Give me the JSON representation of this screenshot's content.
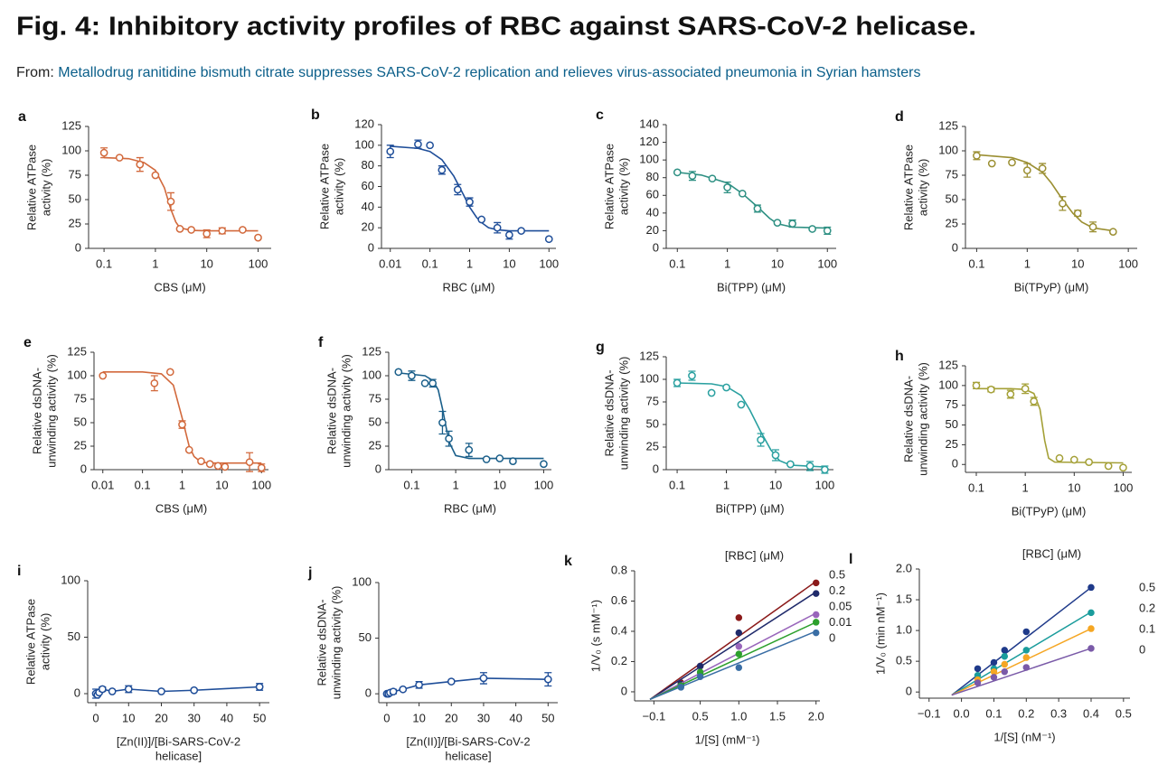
{
  "header": {
    "title": "Fig. 4: Inhibitory activity profiles of RBC against SARS-CoV-2 helicase.",
    "from": "From:",
    "link": "Metallodrug ranitidine bismuth citrate suppresses SARS-CoV-2 replication and relieves virus-associated pneumonia in Syrian hamsters"
  },
  "chart_data": [
    {
      "panel": "a",
      "type": "scatter",
      "log_x": true,
      "color": "#d2693c",
      "xlabel": "CBS (μM)",
      "ylabel": [
        "Relative ATPase",
        "activity (%)"
      ],
      "xlim": [
        0.05,
        180
      ],
      "xticks": [
        0.1,
        1,
        10,
        100
      ],
      "ylim": [
        0,
        125
      ],
      "yticks": [
        0,
        25,
        50,
        75,
        100,
        125
      ],
      "x": [
        0.1,
        0.2,
        0.5,
        1,
        2,
        3,
        5,
        10,
        20,
        50,
        100
      ],
      "values": [
        98,
        93,
        86,
        75,
        48,
        20,
        19,
        15,
        18,
        19,
        11
      ],
      "errors": [
        5,
        null,
        7,
        null,
        9,
        null,
        null,
        4,
        3,
        null,
        null
      ],
      "curve": {
        "x": [
          0.1,
          0.3,
          0.6,
          1,
          1.5,
          2,
          2.5,
          3,
          5,
          10,
          100
        ],
        "values": [
          93,
          92,
          88,
          80,
          62,
          40,
          27,
          21,
          18.5,
          18,
          18
        ]
      }
    },
    {
      "panel": "b",
      "type": "scatter",
      "log_x": true,
      "color": "#1f4e99",
      "xlabel": "RBC (μM)",
      "ylabel": [
        "Relative ATPase",
        "activity (%)"
      ],
      "xlim": [
        0.006,
        150
      ],
      "xticks": [
        0.01,
        0.1,
        1,
        10,
        100
      ],
      "ylim": [
        0,
        120
      ],
      "yticks": [
        0,
        20,
        40,
        60,
        80,
        100,
        120
      ],
      "x": [
        0.01,
        0.05,
        0.1,
        0.2,
        0.5,
        1,
        2,
        5,
        10,
        20,
        100
      ],
      "values": [
        94,
        101,
        100,
        76,
        57,
        45,
        28,
        20,
        13,
        17,
        9
      ],
      "errors": [
        6,
        4,
        null,
        4,
        5,
        4,
        null,
        5,
        4,
        null,
        null
      ],
      "curve": {
        "x": [
          0.01,
          0.05,
          0.1,
          0.2,
          0.4,
          0.7,
          1,
          1.5,
          2,
          3,
          5,
          10,
          100
        ],
        "values": [
          99,
          97,
          94,
          86,
          70,
          52,
          40,
          30,
          25,
          20,
          18,
          17,
          17
        ]
      }
    },
    {
      "panel": "c",
      "type": "scatter",
      "log_x": true,
      "color": "#2e9083",
      "xlabel": "Bi(TPP) (μM)",
      "ylabel": [
        "Relative ATPase",
        "activity (%)"
      ],
      "xlim": [
        0.06,
        150
      ],
      "xticks": [
        0.1,
        1,
        10,
        100
      ],
      "ylim": [
        0,
        140
      ],
      "yticks": [
        0,
        20,
        40,
        60,
        80,
        100,
        120,
        140
      ],
      "x": [
        0.1,
        0.2,
        0.5,
        1,
        2,
        4,
        10,
        20,
        50,
        100
      ],
      "values": [
        86,
        82,
        79,
        69,
        62,
        45,
        29,
        28,
        22,
        20
      ],
      "errors": [
        null,
        5,
        null,
        6,
        null,
        4,
        null,
        4,
        null,
        4
      ],
      "curve": {
        "x": [
          0.1,
          0.3,
          1,
          2,
          4,
          7,
          10,
          20,
          100
        ],
        "values": [
          86,
          83,
          74,
          62,
          47,
          34,
          28,
          24,
          23
        ]
      }
    },
    {
      "panel": "d",
      "type": "scatter",
      "log_x": true,
      "color": "#9b8f32",
      "xlabel": "Bi(TPyP) (μM)",
      "ylabel": [
        "Relative ATPase",
        "activity (%)"
      ],
      "xlim": [
        0.06,
        150
      ],
      "xticks": [
        0.1,
        1,
        10,
        100
      ],
      "ylim": [
        0,
        125
      ],
      "yticks": [
        0,
        25,
        50,
        75,
        100,
        125
      ],
      "x": [
        0.1,
        0.2,
        0.5,
        1,
        2,
        5,
        10,
        20,
        50
      ],
      "values": [
        95,
        87,
        88,
        80,
        82,
        46,
        36,
        22,
        17
      ],
      "errors": [
        4,
        null,
        null,
        7,
        5,
        7,
        3,
        5,
        null
      ],
      "curve": {
        "x": [
          0.1,
          0.5,
          1,
          2,
          3,
          5,
          8,
          12,
          20,
          50
        ],
        "values": [
          96,
          93,
          88,
          78,
          67,
          50,
          36,
          27,
          21,
          18
        ]
      }
    },
    {
      "panel": "e",
      "type": "scatter",
      "log_x": true,
      "color": "#d2693c",
      "xlabel": "CBS (μM)",
      "ylabel": [
        "Relative dsDNA-",
        "unwinding activity (%)"
      ],
      "xlim": [
        0.006,
        150
      ],
      "xticks": [
        0.01,
        0.1,
        1,
        10,
        100
      ],
      "ylim": [
        0,
        125
      ],
      "yticks": [
        0,
        25,
        50,
        75,
        100,
        125
      ],
      "x": [
        0.01,
        0.2,
        0.5,
        1,
        1.5,
        3,
        5,
        8,
        12,
        50,
        100
      ],
      "values": [
        100,
        92,
        104,
        48,
        21,
        9,
        6,
        4,
        3,
        8,
        2
      ],
      "errors": [
        null,
        8,
        null,
        4,
        null,
        null,
        null,
        null,
        null,
        10,
        4
      ],
      "curve": {
        "x": [
          0.01,
          0.1,
          0.3,
          0.6,
          1,
          1.5,
          2,
          3,
          5,
          100
        ],
        "values": [
          104,
          104,
          102,
          90,
          55,
          25,
          14,
          8,
          7,
          7
        ]
      }
    },
    {
      "panel": "f",
      "type": "scatter",
      "log_x": true,
      "color": "#1a5f8a",
      "xlabel": "RBC (μM)",
      "ylabel": [
        "Relative dsDNA-",
        "unwinding activity (%)"
      ],
      "xlim": [
        0.03,
        150
      ],
      "xticks": [
        0.1,
        1,
        10,
        100
      ],
      "ylim": [
        0,
        125
      ],
      "yticks": [
        0,
        25,
        50,
        75,
        100,
        125
      ],
      "x": [
        0.05,
        0.1,
        0.2,
        0.3,
        0.5,
        0.7,
        2,
        5,
        10,
        20,
        100
      ],
      "values": [
        104,
        100,
        92,
        92,
        50,
        33,
        21,
        11,
        12,
        9,
        6
      ],
      "errors": [
        null,
        5,
        null,
        4,
        12,
        8,
        7,
        null,
        null,
        null,
        null
      ],
      "curve": {
        "x": [
          0.05,
          0.2,
          0.3,
          0.4,
          0.5,
          0.7,
          1,
          2,
          100
        ],
        "values": [
          103,
          100,
          95,
          85,
          65,
          30,
          15,
          12,
          12
        ]
      }
    },
    {
      "panel": "g",
      "type": "scatter",
      "log_x": true,
      "color": "#2aa0a0",
      "xlabel": "Bi(TPP) (μM)",
      "ylabel": [
        "Relative dsDNA-",
        "unwinding activity (%)"
      ],
      "xlim": [
        0.06,
        150
      ],
      "xticks": [
        0.1,
        1,
        10,
        100
      ],
      "ylim": [
        0,
        125
      ],
      "yticks": [
        0,
        25,
        50,
        75,
        100,
        125
      ],
      "x": [
        0.1,
        0.2,
        0.5,
        1,
        2,
        5,
        10,
        20,
        50,
        100
      ],
      "values": [
        96,
        104,
        85,
        91,
        72,
        33,
        16,
        6,
        4,
        0
      ],
      "errors": [
        4,
        5,
        null,
        null,
        null,
        7,
        6,
        null,
        5,
        4
      ],
      "curve": {
        "x": [
          0.1,
          0.5,
          1,
          2,
          3,
          5,
          8,
          12,
          20,
          100
        ],
        "values": [
          96,
          95,
          92,
          82,
          66,
          42,
          22,
          10,
          5,
          3
        ]
      }
    },
    {
      "panel": "h",
      "type": "scatter",
      "log_x": true,
      "color": "#a4a037",
      "xlabel": "Bi(TPyP) (μM)",
      "ylabel": [
        "Relative dsDNA-",
        "unwinding activity (%)"
      ],
      "xlim": [
        0.06,
        150
      ],
      "xticks": [
        0.1,
        1,
        10,
        100
      ],
      "ylim": [
        -10,
        125
      ],
      "yticks": [
        0,
        25,
        50,
        75,
        100,
        125
      ],
      "x": [
        0.1,
        0.2,
        0.5,
        1,
        1.5,
        5,
        10,
        20,
        50,
        100
      ],
      "values": [
        100,
        95,
        89,
        96,
        80,
        8,
        6,
        3,
        -2,
        -4
      ],
      "errors": [
        4,
        3,
        5,
        6,
        5,
        null,
        null,
        null,
        null,
        null
      ],
      "curve": {
        "x": [
          0.1,
          0.5,
          1,
          1.5,
          2,
          2.5,
          3,
          4,
          100
        ],
        "values": [
          96,
          96,
          95,
          90,
          70,
          30,
          8,
          3,
          2
        ]
      }
    },
    {
      "panel": "i",
      "type": "line",
      "color": "#1f4e99",
      "xlabel": [
        "[Zn(II)]/[Bi-SARS-CoV-2",
        "helicase]"
      ],
      "ylabel": [
        "Relative ATPase",
        "activity (%)"
      ],
      "xlim": [
        -2.5,
        53
      ],
      "xticks": [
        0,
        10,
        20,
        30,
        40,
        50
      ],
      "ylim": [
        -8,
        100
      ],
      "yticks": [
        0,
        50,
        100
      ],
      "x": [
        0,
        0.5,
        1,
        2,
        5,
        10,
        20,
        30,
        50
      ],
      "values": [
        0,
        -1,
        1,
        4,
        2,
        4,
        2,
        3,
        6
      ],
      "errors": [
        4,
        null,
        null,
        2,
        null,
        3,
        null,
        null,
        3
      ]
    },
    {
      "panel": "j",
      "type": "line",
      "color": "#1f4e99",
      "xlabel": [
        "[Zn(II)]/[Bi-SARS-CoV-2",
        "helicase]"
      ],
      "ylabel": [
        "Relative dsDNA-",
        "unwinding activity (%)"
      ],
      "xlim": [
        -2.5,
        53
      ],
      "xticks": [
        0,
        10,
        20,
        30,
        40,
        50
      ],
      "ylim": [
        -8,
        100
      ],
      "yticks": [
        0,
        50,
        100
      ],
      "x": [
        0,
        0.5,
        1,
        2,
        5,
        10,
        20,
        30,
        50
      ],
      "values": [
        0,
        0,
        1,
        2,
        4,
        8,
        11,
        14,
        13
      ],
      "errors": [
        null,
        null,
        null,
        2,
        null,
        3,
        null,
        5,
        6
      ]
    },
    {
      "panel": "k",
      "type": "scatter",
      "xlabel": "1/[S] (mM⁻¹)",
      "ylabel": [
        "1/V₀ (s mM⁻¹)"
      ],
      "legend_title": "[RBC] (μM)",
      "xlim": [
        -0.35,
        2.05
      ],
      "xticks": [
        {
          "value": -0.1,
          "label": "−0.1"
        },
        0.5,
        {
          "value": 1,
          "label": "1.0"
        },
        1.5,
        {
          "value": 2,
          "label": "2.0"
        }
      ],
      "ylim": [
        -0.06,
        0.8
      ],
      "yticks": [
        0,
        0.2,
        0.4,
        0.6,
        0.8
      ],
      "series": [
        {
          "name": "0.5",
          "color": "#8b1a1a",
          "x": [
            0.25,
            0.5,
            1,
            2
          ],
          "values": [
            0.06,
            0.17,
            0.49,
            0.72
          ],
          "fit": {
            "x": [
              -0.15,
              2
            ],
            "values": [
              -0.05,
              0.73
            ]
          }
        },
        {
          "name": "0.2",
          "color": "#1f2a6b",
          "x": [
            0.25,
            0.5,
            1,
            2
          ],
          "values": [
            0.05,
            0.17,
            0.39,
            0.65
          ],
          "fit": {
            "x": [
              -0.15,
              2
            ],
            "values": [
              -0.05,
              0.66
            ]
          }
        },
        {
          "name": "0.05",
          "color": "#9966bb",
          "x": [
            0.25,
            0.5,
            1,
            2
          ],
          "values": [
            0.04,
            0.12,
            0.3,
            0.51
          ],
          "fit": {
            "x": [
              -0.15,
              2
            ],
            "values": [
              -0.05,
              0.52
            ]
          }
        },
        {
          "name": "0.01",
          "color": "#2ca02c",
          "x": [
            0.25,
            0.5,
            1,
            2
          ],
          "values": [
            0.04,
            0.13,
            0.25,
            0.46
          ],
          "fit": {
            "x": [
              -0.15,
              2
            ],
            "values": [
              -0.05,
              0.46
            ]
          }
        },
        {
          "name": "0",
          "color": "#3a6ea5",
          "x": [
            0.25,
            0.5,
            1,
            2
          ],
          "values": [
            0.03,
            0.1,
            0.16,
            0.39
          ],
          "fit": {
            "x": [
              -0.15,
              2
            ],
            "values": [
              -0.05,
              0.4
            ]
          }
        }
      ]
    },
    {
      "panel": "l",
      "type": "scatter",
      "xlabel": "1/[S] (nM⁻¹)",
      "ylabel": [
        "1/V₀ (min nM⁻¹)"
      ],
      "legend_title": "[RBC] (μM)",
      "xlim": [
        -0.13,
        0.52
      ],
      "xticks": [
        {
          "value": -0.1,
          "label": "−0.1"
        },
        {
          "value": 0,
          "label": "0.0"
        },
        0.1,
        0.2,
        0.3,
        0.4,
        0.5
      ],
      "ylim": [
        -0.1,
        2.0
      ],
      "yticks": [
        0,
        0.5,
        {
          "value": 1,
          "label": "1.0"
        },
        1.5,
        {
          "value": 2,
          "label": "2.0"
        }
      ],
      "series": [
        {
          "name": "0.5",
          "color": "#1f3a8a",
          "x": [
            0.05,
            0.1,
            0.133,
            0.2,
            0.4
          ],
          "values": [
            0.38,
            0.48,
            0.68,
            0.98,
            1.7
          ],
          "fit": {
            "x": [
              -0.03,
              0.4
            ],
            "values": [
              -0.05,
              1.7
            ]
          }
        },
        {
          "name": "0.2",
          "color": "#1a9c9c",
          "x": [
            0.05,
            0.1,
            0.133,
            0.2,
            0.4
          ],
          "values": [
            0.27,
            0.38,
            0.58,
            0.68,
            1.29
          ],
          "fit": {
            "x": [
              -0.03,
              0.4
            ],
            "values": [
              -0.05,
              1.3
            ]
          }
        },
        {
          "name": "0.1",
          "color": "#f5a623",
          "x": [
            0.05,
            0.1,
            0.133,
            0.2,
            0.4
          ],
          "values": [
            0.2,
            0.33,
            0.45,
            0.56,
            1.03
          ],
          "fit": {
            "x": [
              -0.03,
              0.4
            ],
            "values": [
              -0.05,
              1.03
            ]
          }
        },
        {
          "name": "0",
          "color": "#7a5aa8",
          "x": [
            0.05,
            0.1,
            0.133,
            0.2,
            0.4
          ],
          "values": [
            0.15,
            0.24,
            0.33,
            0.4,
            0.71
          ],
          "fit": {
            "x": [
              -0.03,
              0.4
            ],
            "values": [
              -0.05,
              0.71
            ]
          }
        }
      ]
    }
  ]
}
